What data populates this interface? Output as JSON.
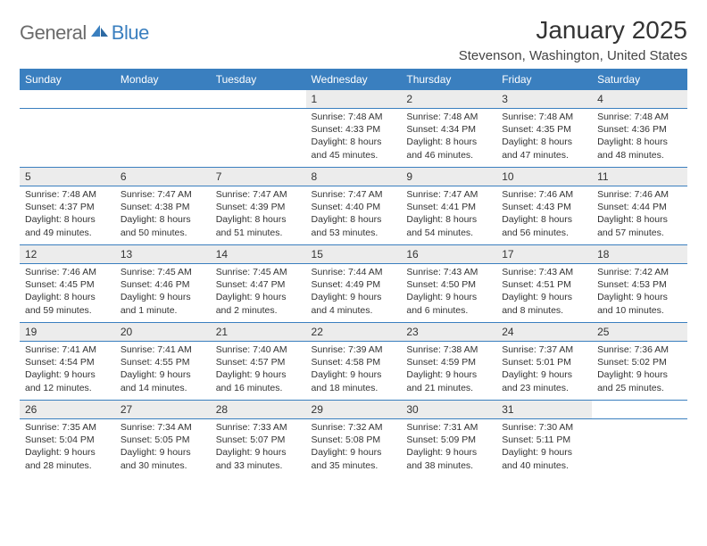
{
  "logo": {
    "general": "General",
    "blue": "Blue"
  },
  "title": "January 2025",
  "location": "Stevenson, Washington, United States",
  "day_headers": [
    "Sunday",
    "Monday",
    "Tuesday",
    "Wednesday",
    "Thursday",
    "Friday",
    "Saturday"
  ],
  "colors": {
    "header_bg": "#3a7fbf",
    "header_text": "#ffffff",
    "daynum_bg": "#ececec",
    "row_divider": "#3a7fbf",
    "logo_gray": "#6b6b6b",
    "logo_blue": "#3a7fbf",
    "text": "#333333",
    "background": "#ffffff"
  },
  "typography": {
    "title_fontsize": 28,
    "location_fontsize": 15,
    "header_fontsize": 12,
    "daynum_fontsize": 12,
    "detail_fontsize": 10.5,
    "logo_fontsize": 22
  },
  "layout": {
    "columns": 7,
    "rows": 5,
    "aspect_w": 792,
    "aspect_h": 612
  },
  "weeks": [
    [
      {
        "n": "",
        "sr": "",
        "ss": "",
        "dl1": "",
        "dl2": ""
      },
      {
        "n": "",
        "sr": "",
        "ss": "",
        "dl1": "",
        "dl2": ""
      },
      {
        "n": "",
        "sr": "",
        "ss": "",
        "dl1": "",
        "dl2": ""
      },
      {
        "n": "1",
        "sr": "Sunrise: 7:48 AM",
        "ss": "Sunset: 4:33 PM",
        "dl1": "Daylight: 8 hours",
        "dl2": "and 45 minutes."
      },
      {
        "n": "2",
        "sr": "Sunrise: 7:48 AM",
        "ss": "Sunset: 4:34 PM",
        "dl1": "Daylight: 8 hours",
        "dl2": "and 46 minutes."
      },
      {
        "n": "3",
        "sr": "Sunrise: 7:48 AM",
        "ss": "Sunset: 4:35 PM",
        "dl1": "Daylight: 8 hours",
        "dl2": "and 47 minutes."
      },
      {
        "n": "4",
        "sr": "Sunrise: 7:48 AM",
        "ss": "Sunset: 4:36 PM",
        "dl1": "Daylight: 8 hours",
        "dl2": "and 48 minutes."
      }
    ],
    [
      {
        "n": "5",
        "sr": "Sunrise: 7:48 AM",
        "ss": "Sunset: 4:37 PM",
        "dl1": "Daylight: 8 hours",
        "dl2": "and 49 minutes."
      },
      {
        "n": "6",
        "sr": "Sunrise: 7:47 AM",
        "ss": "Sunset: 4:38 PM",
        "dl1": "Daylight: 8 hours",
        "dl2": "and 50 minutes."
      },
      {
        "n": "7",
        "sr": "Sunrise: 7:47 AM",
        "ss": "Sunset: 4:39 PM",
        "dl1": "Daylight: 8 hours",
        "dl2": "and 51 minutes."
      },
      {
        "n": "8",
        "sr": "Sunrise: 7:47 AM",
        "ss": "Sunset: 4:40 PM",
        "dl1": "Daylight: 8 hours",
        "dl2": "and 53 minutes."
      },
      {
        "n": "9",
        "sr": "Sunrise: 7:47 AM",
        "ss": "Sunset: 4:41 PM",
        "dl1": "Daylight: 8 hours",
        "dl2": "and 54 minutes."
      },
      {
        "n": "10",
        "sr": "Sunrise: 7:46 AM",
        "ss": "Sunset: 4:43 PM",
        "dl1": "Daylight: 8 hours",
        "dl2": "and 56 minutes."
      },
      {
        "n": "11",
        "sr": "Sunrise: 7:46 AM",
        "ss": "Sunset: 4:44 PM",
        "dl1": "Daylight: 8 hours",
        "dl2": "and 57 minutes."
      }
    ],
    [
      {
        "n": "12",
        "sr": "Sunrise: 7:46 AM",
        "ss": "Sunset: 4:45 PM",
        "dl1": "Daylight: 8 hours",
        "dl2": "and 59 minutes."
      },
      {
        "n": "13",
        "sr": "Sunrise: 7:45 AM",
        "ss": "Sunset: 4:46 PM",
        "dl1": "Daylight: 9 hours",
        "dl2": "and 1 minute."
      },
      {
        "n": "14",
        "sr": "Sunrise: 7:45 AM",
        "ss": "Sunset: 4:47 PM",
        "dl1": "Daylight: 9 hours",
        "dl2": "and 2 minutes."
      },
      {
        "n": "15",
        "sr": "Sunrise: 7:44 AM",
        "ss": "Sunset: 4:49 PM",
        "dl1": "Daylight: 9 hours",
        "dl2": "and 4 minutes."
      },
      {
        "n": "16",
        "sr": "Sunrise: 7:43 AM",
        "ss": "Sunset: 4:50 PM",
        "dl1": "Daylight: 9 hours",
        "dl2": "and 6 minutes."
      },
      {
        "n": "17",
        "sr": "Sunrise: 7:43 AM",
        "ss": "Sunset: 4:51 PM",
        "dl1": "Daylight: 9 hours",
        "dl2": "and 8 minutes."
      },
      {
        "n": "18",
        "sr": "Sunrise: 7:42 AM",
        "ss": "Sunset: 4:53 PM",
        "dl1": "Daylight: 9 hours",
        "dl2": "and 10 minutes."
      }
    ],
    [
      {
        "n": "19",
        "sr": "Sunrise: 7:41 AM",
        "ss": "Sunset: 4:54 PM",
        "dl1": "Daylight: 9 hours",
        "dl2": "and 12 minutes."
      },
      {
        "n": "20",
        "sr": "Sunrise: 7:41 AM",
        "ss": "Sunset: 4:55 PM",
        "dl1": "Daylight: 9 hours",
        "dl2": "and 14 minutes."
      },
      {
        "n": "21",
        "sr": "Sunrise: 7:40 AM",
        "ss": "Sunset: 4:57 PM",
        "dl1": "Daylight: 9 hours",
        "dl2": "and 16 minutes."
      },
      {
        "n": "22",
        "sr": "Sunrise: 7:39 AM",
        "ss": "Sunset: 4:58 PM",
        "dl1": "Daylight: 9 hours",
        "dl2": "and 18 minutes."
      },
      {
        "n": "23",
        "sr": "Sunrise: 7:38 AM",
        "ss": "Sunset: 4:59 PM",
        "dl1": "Daylight: 9 hours",
        "dl2": "and 21 minutes."
      },
      {
        "n": "24",
        "sr": "Sunrise: 7:37 AM",
        "ss": "Sunset: 5:01 PM",
        "dl1": "Daylight: 9 hours",
        "dl2": "and 23 minutes."
      },
      {
        "n": "25",
        "sr": "Sunrise: 7:36 AM",
        "ss": "Sunset: 5:02 PM",
        "dl1": "Daylight: 9 hours",
        "dl2": "and 25 minutes."
      }
    ],
    [
      {
        "n": "26",
        "sr": "Sunrise: 7:35 AM",
        "ss": "Sunset: 5:04 PM",
        "dl1": "Daylight: 9 hours",
        "dl2": "and 28 minutes."
      },
      {
        "n": "27",
        "sr": "Sunrise: 7:34 AM",
        "ss": "Sunset: 5:05 PM",
        "dl1": "Daylight: 9 hours",
        "dl2": "and 30 minutes."
      },
      {
        "n": "28",
        "sr": "Sunrise: 7:33 AM",
        "ss": "Sunset: 5:07 PM",
        "dl1": "Daylight: 9 hours",
        "dl2": "and 33 minutes."
      },
      {
        "n": "29",
        "sr": "Sunrise: 7:32 AM",
        "ss": "Sunset: 5:08 PM",
        "dl1": "Daylight: 9 hours",
        "dl2": "and 35 minutes."
      },
      {
        "n": "30",
        "sr": "Sunrise: 7:31 AM",
        "ss": "Sunset: 5:09 PM",
        "dl1": "Daylight: 9 hours",
        "dl2": "and 38 minutes."
      },
      {
        "n": "31",
        "sr": "Sunrise: 7:30 AM",
        "ss": "Sunset: 5:11 PM",
        "dl1": "Daylight: 9 hours",
        "dl2": "and 40 minutes."
      },
      {
        "n": "",
        "sr": "",
        "ss": "",
        "dl1": "",
        "dl2": ""
      }
    ]
  ]
}
